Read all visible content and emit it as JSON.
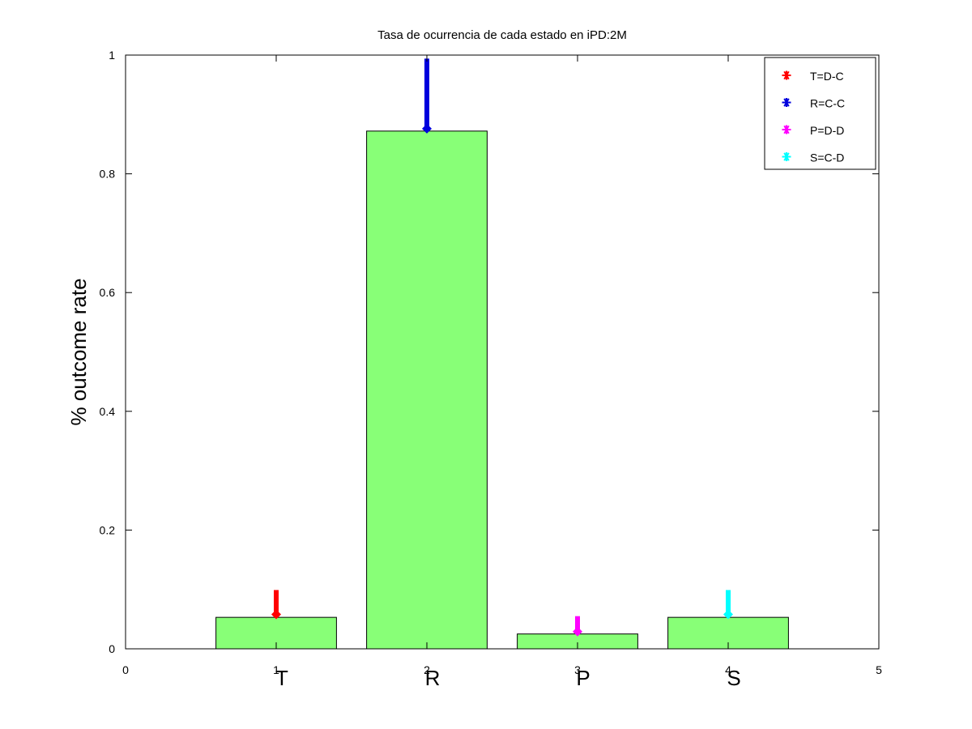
{
  "chart_data": {
    "type": "bar",
    "title": "Tasa de ocurrencia de cada estado en iPD:2M",
    "xlabel": "",
    "ylabel": "% outcome rate",
    "xlim": [
      0,
      5
    ],
    "ylim": [
      0,
      1
    ],
    "xticks": [
      "0",
      "1",
      "2",
      "3",
      "4",
      "5"
    ],
    "yticks": [
      "0",
      "0.2",
      "0.4",
      "0.6",
      "0.8",
      "1"
    ],
    "categories": [
      "T",
      "R",
      "P",
      "S"
    ],
    "x": [
      1,
      2,
      3,
      4
    ],
    "values": [
      0.053,
      0.872,
      0.025,
      0.053
    ],
    "bar_color": "#88ff77",
    "error_bars": [
      {
        "x": 1,
        "low": 0.058,
        "high": 0.099,
        "color": "#ff0000"
      },
      {
        "x": 2,
        "low": 0.876,
        "high": 0.994,
        "color": "#0000dd"
      },
      {
        "x": 3,
        "low": 0.029,
        "high": 0.055,
        "color": "#ff00ff"
      },
      {
        "x": 4,
        "low": 0.058,
        "high": 0.099,
        "color": "#00ffff"
      }
    ],
    "grid": false,
    "legend": {
      "placement": "top-right",
      "entries": [
        {
          "label": "T=D-C",
          "color": "#ff0000",
          "marker": "asterisk"
        },
        {
          "label": "R=C-C",
          "color": "#0000dd",
          "marker": "asterisk"
        },
        {
          "label": "P=D-D",
          "color": "#ff00ff",
          "marker": "asterisk"
        },
        {
          "label": "S=C-D",
          "color": "#00ffff",
          "marker": "asterisk"
        }
      ]
    }
  }
}
